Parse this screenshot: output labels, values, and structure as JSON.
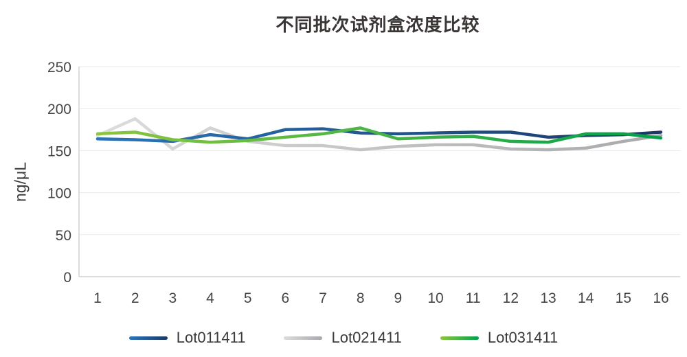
{
  "title": "不同批次试剂盒浓度比较",
  "chart_data": {
    "type": "line",
    "title": "不同批次试剂盒浓度比较",
    "xlabel": "",
    "ylabel": "ng/μL",
    "ylim": [
      0,
      250
    ],
    "yticks": [
      0,
      50,
      100,
      150,
      200,
      250
    ],
    "x": [
      1,
      2,
      3,
      4,
      5,
      6,
      7,
      8,
      9,
      10,
      11,
      12,
      13,
      14,
      15,
      16
    ],
    "grid": "horizontal",
    "legend_position": "bottom-center",
    "series": [
      {
        "name": "Lot011411",
        "color_start": "#2a74b9",
        "color_end": "#1c3864",
        "values": [
          164,
          163,
          161,
          169,
          164,
          175,
          176,
          171,
          170,
          171,
          172,
          172,
          166,
          168,
          169,
          172
        ]
      },
      {
        "name": "Lot021411",
        "color_start": "#dcdddd",
        "color_end": "#a7a9ac",
        "values": [
          168,
          188,
          152,
          177,
          161,
          156,
          156,
          151,
          155,
          157,
          157,
          152,
          151,
          153,
          161,
          168
        ]
      },
      {
        "name": "Lot031411",
        "color_start": "#8dc63f",
        "color_end": "#00a14b",
        "values": [
          170,
          172,
          163,
          160,
          162,
          166,
          170,
          177,
          164,
          166,
          167,
          161,
          160,
          170,
          170,
          165
        ]
      }
    ]
  }
}
